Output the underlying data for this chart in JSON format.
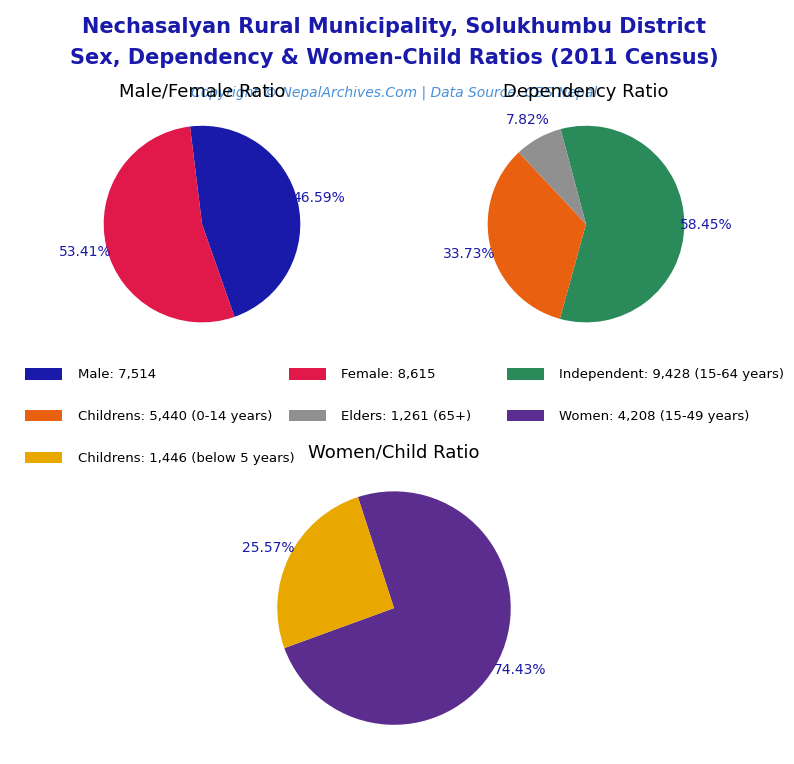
{
  "title_line1": "Nechasalyan Rural Municipality, Solukhumbu District",
  "title_line2": "Sex, Dependency & Women-Child Ratios (2011 Census)",
  "copyright": "Copyright © NepalArchives.Com | Data Source: CBS Nepal",
  "pie1_title": "Male/Female Ratio",
  "pie1_values": [
    46.59,
    53.41
  ],
  "pie1_labels": [
    "46.59%",
    "53.41%"
  ],
  "pie1_colors": [
    "#1a1aaa",
    "#e0194a"
  ],
  "pie1_startangle": 97,
  "pie2_title": "Dependency Ratio",
  "pie2_values": [
    58.45,
    33.73,
    7.82
  ],
  "pie2_labels": [
    "58.45%",
    "33.73%",
    "7.82%"
  ],
  "pie2_colors": [
    "#2a8a5a",
    "#e86010",
    "#909090"
  ],
  "pie2_startangle": 105,
  "pie3_title": "Women/Child Ratio",
  "pie3_values": [
    74.43,
    25.57
  ],
  "pie3_labels": [
    "74.43%",
    "25.57%"
  ],
  "pie3_colors": [
    "#5b2d8e",
    "#e8a800"
  ],
  "pie3_startangle": 108,
  "legend_items": [
    {
      "label": "Male: 7,514",
      "color": "#1a1aaa"
    },
    {
      "label": "Female: 8,615",
      "color": "#e0194a"
    },
    {
      "label": "Independent: 9,428 (15-64 years)",
      "color": "#2a8a5a"
    },
    {
      "label": "Childrens: 5,440 (0-14 years)",
      "color": "#e86010"
    },
    {
      "label": "Elders: 1,261 (65+)",
      "color": "#909090"
    },
    {
      "label": "Women: 4,208 (15-49 years)",
      "color": "#5b2d8e"
    },
    {
      "label": "Childrens: 1,446 (below 5 years)",
      "color": "#e8a800"
    }
  ],
  "title_color": "#1a1aaa",
  "copyright_color": "#4a90d9",
  "label_color": "#1a1aaa",
  "title_fontsize": 15,
  "copyright_fontsize": 10
}
